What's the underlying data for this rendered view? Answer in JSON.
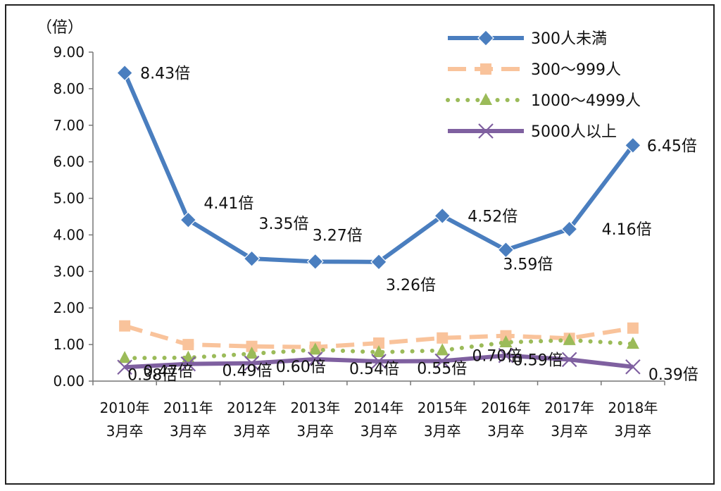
{
  "chart_data": {
    "type": "line",
    "unit_label": "（倍）",
    "ylim": [
      0,
      9
    ],
    "y_ticks": [
      "0.00",
      "1.00",
      "2.00",
      "3.00",
      "4.00",
      "5.00",
      "6.00",
      "7.00",
      "8.00",
      "9.00"
    ],
    "categories": [
      [
        "2010年",
        "3月卒"
      ],
      [
        "2011年",
        "3月卒"
      ],
      [
        "2012年",
        "3月卒"
      ],
      [
        "2013年",
        "3月卒"
      ],
      [
        "2014年",
        "3月卒"
      ],
      [
        "2015年",
        "3月卒"
      ],
      [
        "2016年",
        "3月卒"
      ],
      [
        "2017年",
        "3月卒"
      ],
      [
        "2018年",
        "3月卒"
      ]
    ],
    "grid": false,
    "legend_position": "top-right",
    "series": [
      {
        "name": "300人未満",
        "color": "#4a7ebf",
        "marker": "diamond",
        "dash": "solid",
        "values": [
          8.43,
          4.41,
          3.35,
          3.27,
          3.26,
          4.52,
          3.59,
          4.16,
          6.45
        ],
        "labels": [
          "8.43倍",
          "4.41倍",
          "3.35倍",
          "3.27倍",
          "3.26倍",
          "4.52倍",
          "3.59倍",
          "4.16倍",
          "6.45倍"
        ]
      },
      {
        "name": "300～999人",
        "color": "#f9c39b",
        "marker": "square",
        "dash": "dashed",
        "values": [
          1.51,
          1.0,
          0.95,
          0.93,
          1.04,
          1.18,
          1.24,
          1.17,
          1.45
        ]
      },
      {
        "name": "1000～4999人",
        "color": "#9bbb59",
        "marker": "triangle",
        "dash": "dotted",
        "values": [
          0.63,
          0.64,
          0.75,
          0.86,
          0.79,
          0.84,
          1.06,
          1.12,
          1.02
        ]
      },
      {
        "name": "5000人以上",
        "color": "#7f60a0",
        "marker": "x",
        "dash": "solid",
        "values": [
          0.38,
          0.47,
          0.49,
          0.6,
          0.54,
          0.55,
          0.7,
          0.59,
          0.39
        ],
        "labels": [
          "0.38倍",
          "0.47倍",
          "0.49倍",
          "0.60倍",
          "0.54倍",
          "0.55倍",
          "0.70倍",
          "0.59倍",
          "0.39倍"
        ]
      }
    ]
  }
}
